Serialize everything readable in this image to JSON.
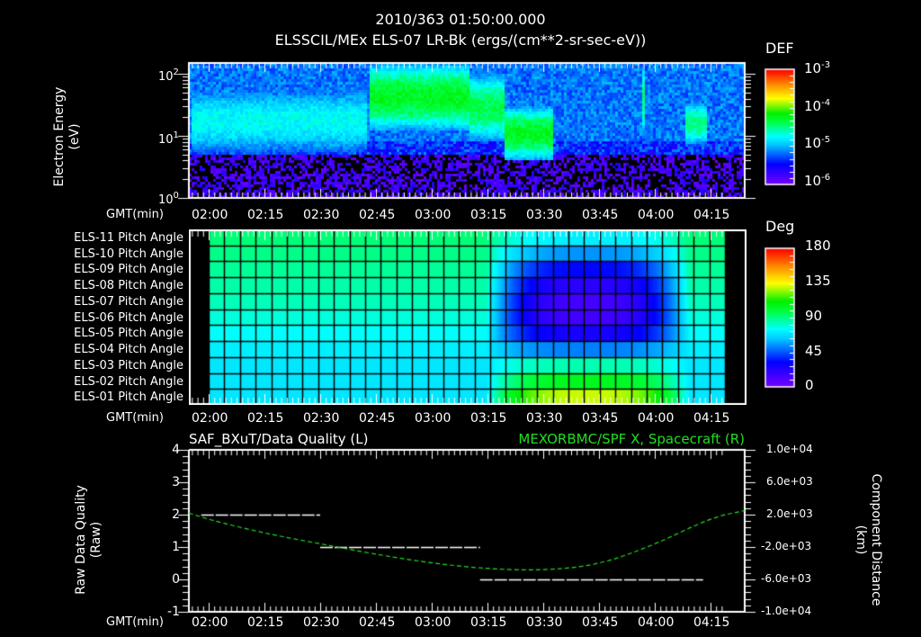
{
  "header": {
    "timestamp": "2010/363 01:50:00.000",
    "subtitle": "ELSSCIL/MEx ELS-07 LR-Bk  (ergs/(cm**2-sr-sec-eV))"
  },
  "time_axis": {
    "label": "GMT(min)",
    "ticks": [
      "02:00",
      "02:15",
      "02:30",
      "02:45",
      "03:00",
      "03:15",
      "03:30",
      "03:45",
      "04:00",
      "04:15"
    ]
  },
  "panel_energy": {
    "ylabel_line1": "Electron Energy",
    "ylabel_line2": "(eV)",
    "yticks": [
      {
        "base": "10",
        "exp": "2"
      },
      {
        "base": "10",
        "exp": "1"
      },
      {
        "base": "10",
        "exp": "0"
      }
    ],
    "colorbar": {
      "title": "DEF",
      "ticks": [
        {
          "base": "10",
          "exp": "-3"
        },
        {
          "base": "10",
          "exp": "-4"
        },
        {
          "base": "10",
          "exp": "-5"
        },
        {
          "base": "10",
          "exp": "-6"
        }
      ]
    }
  },
  "panel_pitch": {
    "row_labels": [
      "ELS-11 Pitch Angle",
      "ELS-10 Pitch Angle",
      "ELS-09 Pitch Angle",
      "ELS-08 Pitch Angle",
      "ELS-07 Pitch Angle",
      "ELS-06 Pitch Angle",
      "ELS-05 Pitch Angle",
      "ELS-04 Pitch Angle",
      "ELS-03 Pitch Angle",
      "ELS-02 Pitch Angle",
      "ELS-01 Pitch Angle"
    ],
    "colorbar": {
      "title": "Deg",
      "ticks": [
        "180",
        "135",
        "90",
        "45",
        "0"
      ]
    }
  },
  "panel_quality": {
    "left_title": "SAF_BXuT/Data Quality (L)",
    "right_title": "MEXORBMC/SPF X, Spacecraft (R)",
    "right_title_color": "#22dd22",
    "ylabel_line1": "Raw Data Quality",
    "ylabel_line2": "(Raw)",
    "yticks_left": [
      "4",
      "3",
      "2",
      "1",
      "0",
      "-1"
    ],
    "yticks_right": [
      "1.0e+04",
      "6.0e+03",
      "2.0e+03",
      "-2.0e+03",
      "-6.0e+03",
      "-1.0e+04"
    ],
    "ylabel_right_line1": "Component Distance",
    "ylabel_right_line2": "(km)"
  },
  "chart_data": [
    {
      "type": "heatmap",
      "title": "ELSSCIL/MEx ELS-07 LR-Bk (ergs/(cm**2-sr-sec-eV))",
      "xlabel": "GMT(min)",
      "ylabel": "Electron Energy (eV)",
      "yscale": "log",
      "ylim": [
        1,
        150
      ],
      "x_range": [
        "01:54",
        "04:18"
      ],
      "colorbar": {
        "label": "DEF",
        "scale": "log",
        "range": [
          1e-06,
          0.001
        ]
      },
      "features": [
        {
          "time": "01:55-02:42",
          "energy_eV": [
            5,
            60
          ],
          "level": 2e-05
        },
        {
          "time": "02:43-03:10",
          "energy_eV": [
            12,
            150
          ],
          "level": 8e-05
        },
        {
          "time": "03:10-03:19",
          "energy_eV": [
            8,
            100
          ],
          "level": 6e-05
        },
        {
          "time": "03:19-03:32",
          "energy_eV": [
            4,
            30
          ],
          "level": 8e-05
        },
        {
          "time": "03:56-03:57",
          "energy_eV": [
            10,
            150
          ],
          "level": 4e-05
        },
        {
          "time": "04:08-04:14",
          "energy_eV": [
            7,
            35
          ],
          "level": 5e-05
        }
      ]
    },
    {
      "type": "heatmap",
      "title": "ELS Pitch Angle",
      "xlabel": "GMT(min)",
      "categories": [
        "ELS-11",
        "ELS-10",
        "ELS-09",
        "ELS-08",
        "ELS-07",
        "ELS-06",
        "ELS-05",
        "ELS-04",
        "ELS-03",
        "ELS-02",
        "ELS-01"
      ],
      "colorbar": {
        "label": "Deg",
        "range": [
          0,
          180
        ]
      },
      "x_range": [
        "01:58",
        "04:13"
      ],
      "baseline_deg": {
        "ELS-11": 92,
        "ELS-10": 90,
        "ELS-09": 88,
        "ELS-08": 86,
        "ELS-07": 84,
        "ELS-06": 80,
        "ELS-05": 76,
        "ELS-04": 72,
        "ELS-03": 70,
        "ELS-02": 70,
        "ELS-01": 70
      },
      "anomaly": {
        "time": "03:15-04:08",
        "min_deg_center_rows": 15,
        "max_deg_ELS-01": 130
      }
    },
    {
      "type": "line",
      "title": "SAF_BXuT/Data Quality (L) / MEXORBMC/SPF X, Spacecraft (R)",
      "xlabel": "GMT(min)",
      "ylabel": "Raw Data Quality (Raw)",
      "ylabel_right": "Component Distance (km)",
      "ylim": [
        -1,
        4
      ],
      "ylim_right": [
        -10000,
        10000
      ],
      "series": [
        {
          "name": "Data Quality",
          "axis": "left",
          "color": "#ffffff",
          "segments": [
            {
              "x": [
                "01:58",
                "02:30"
              ],
              "y": 2
            },
            {
              "x": [
                "02:30",
                "03:13"
              ],
              "y": 1
            },
            {
              "x": [
                "03:13",
                "04:13"
              ],
              "y": 0
            }
          ]
        },
        {
          "name": "SPF X, Spacecraft",
          "axis": "right",
          "color": "#22dd22",
          "x": [
            "01:54",
            "02:00",
            "02:15",
            "02:30",
            "02:45",
            "03:00",
            "03:15",
            "03:30",
            "03:45",
            "04:00",
            "04:15",
            "04:18"
          ],
          "y": [
            2200,
            1400,
            -300,
            -1600,
            -2900,
            -4000,
            -4700,
            -4900,
            -4200,
            -1700,
            1600,
            2500
          ]
        }
      ]
    }
  ]
}
